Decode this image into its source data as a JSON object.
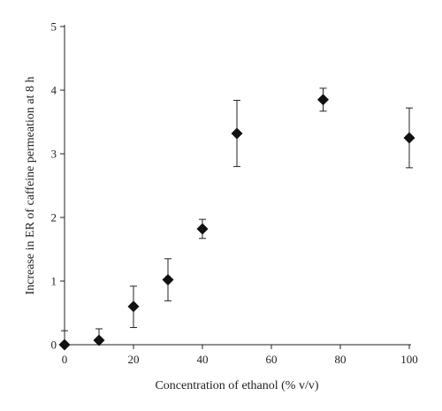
{
  "chart_data": {
    "type": "scatter",
    "title": "",
    "xlabel": "Concentration of ethanol (% v/v)",
    "ylabel": "Increase in ER of caffeine permeation at 8 h",
    "xlim": [
      0,
      100
    ],
    "ylim": [
      0,
      5
    ],
    "xticks": [
      "0",
      "20",
      "40",
      "60",
      "80",
      "100"
    ],
    "yticks": [
      "0",
      "1",
      "2",
      "3",
      "4",
      "5"
    ],
    "grid": false,
    "legend": "none",
    "marker": "diamond",
    "marker_color": "#111111",
    "points": [
      {
        "x": 0,
        "y": 0.0,
        "err_low": 0.0,
        "err_high": 0.22
      },
      {
        "x": 10,
        "y": 0.07,
        "err_low": 0.07,
        "err_high": 0.18
      },
      {
        "x": 20,
        "y": 0.6,
        "err_low": 0.33,
        "err_high": 0.32
      },
      {
        "x": 30,
        "y": 1.02,
        "err_low": 0.33,
        "err_high": 0.33
      },
      {
        "x": 40,
        "y": 1.82,
        "err_low": 0.15,
        "err_high": 0.15
      },
      {
        "x": 50,
        "y": 3.32,
        "err_low": 0.52,
        "err_high": 0.52
      },
      {
        "x": 75,
        "y": 3.85,
        "err_low": 0.18,
        "err_high": 0.18
      },
      {
        "x": 100,
        "y": 3.25,
        "err_low": 0.47,
        "err_high": 0.47
      }
    ]
  }
}
